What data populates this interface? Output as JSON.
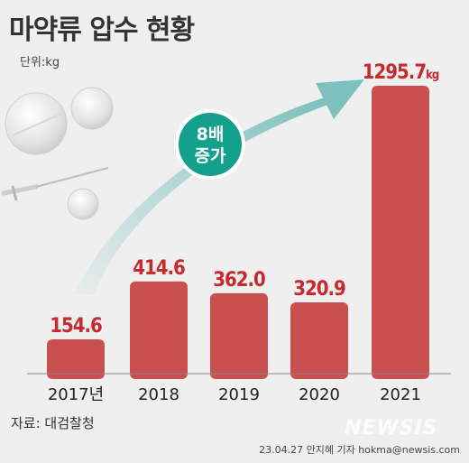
{
  "header": {
    "title": "마약류 압수 현황",
    "unit": "단위:kg"
  },
  "badge": {
    "line1": "8배",
    "line2": "증가"
  },
  "footer": {
    "source": "자료: 대검찰청",
    "credit": "23.04.27 안지혜 기자 hokma@newsis.com",
    "watermark": "NEWSIS"
  },
  "colors": {
    "bar": "#c9504e",
    "value": "#c42a2e",
    "arrow": "#7cc1bd",
    "badge": "#13a18e"
  },
  "chart_data": {
    "type": "bar",
    "title": "마약류 압수 현황",
    "unit": "kg",
    "categories": [
      "2017년",
      "2018",
      "2019",
      "2020",
      "2021"
    ],
    "values": [
      154.6,
      414.6,
      362.0,
      320.9,
      1295.7
    ],
    "value_labels": [
      "154.6",
      "414.6",
      "362.0",
      "320.9",
      "1295.7"
    ],
    "last_label_unit": "kg",
    "ylim": [
      0,
      1400
    ],
    "grid": false,
    "legend": "none"
  }
}
